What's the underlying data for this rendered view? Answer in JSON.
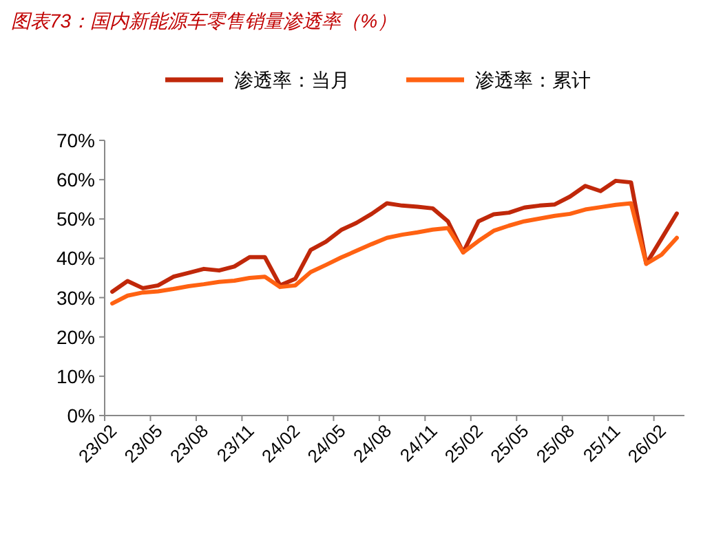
{
  "chart_data": {
    "type": "line",
    "title": "图表73：国内新能源车零售销量渗透率（%）",
    "categories": [
      "23/02",
      null,
      null,
      "23/05",
      null,
      null,
      "23/08",
      null,
      null,
      "23/11",
      null,
      null,
      "24/02",
      null,
      null,
      "24/05",
      null,
      null,
      "24/08",
      null,
      null,
      "24/11",
      null,
      null,
      "25/02",
      null,
      null,
      "25/05",
      null,
      null,
      "25/08",
      null,
      null,
      "25/11",
      null,
      null,
      "26/02",
      null
    ],
    "series": [
      {
        "name": "渗透率：当月",
        "color": "#c0280a",
        "values": [
          31.5,
          34.2,
          32.4,
          33.1,
          35.3,
          36.3,
          37.3,
          36.9,
          37.9,
          40.3,
          40.3,
          33.1,
          34.8,
          42.1,
          44.2,
          47.2,
          49.0,
          51.3,
          54.0,
          53.4,
          53.1,
          52.7,
          49.4,
          41.5,
          49.4,
          51.2,
          51.6,
          52.9,
          53.4,
          53.7,
          55.7,
          58.4,
          57.1,
          59.7,
          59.3,
          38.6,
          45.0,
          51.4
        ]
      },
      {
        "name": "渗透率：累计",
        "color": "#ff6212",
        "values": [
          28.5,
          30.5,
          31.3,
          31.6,
          32.2,
          32.9,
          33.4,
          34.0,
          34.3,
          35.0,
          35.3,
          32.7,
          33.1,
          36.5,
          38.3,
          40.2,
          41.9,
          43.6,
          45.2,
          46.0,
          46.6,
          47.3,
          47.7,
          41.5,
          44.4,
          47.0,
          48.3,
          49.4,
          50.1,
          50.8,
          51.3,
          52.4,
          53.0,
          53.6,
          54.0,
          38.6,
          40.9,
          45.2
        ]
      }
    ],
    "ylim": [
      0,
      70
    ],
    "yticks": [
      {
        "value": 0,
        "label": "0%"
      },
      {
        "value": 10,
        "label": "10%"
      },
      {
        "value": 20,
        "label": "20%"
      },
      {
        "value": 30,
        "label": "30%"
      },
      {
        "value": 40,
        "label": "40%"
      },
      {
        "value": 50,
        "label": "50%"
      },
      {
        "value": 60,
        "label": "60%"
      },
      {
        "value": 70,
        "label": "70%"
      }
    ],
    "legend": "top",
    "grid": false
  }
}
